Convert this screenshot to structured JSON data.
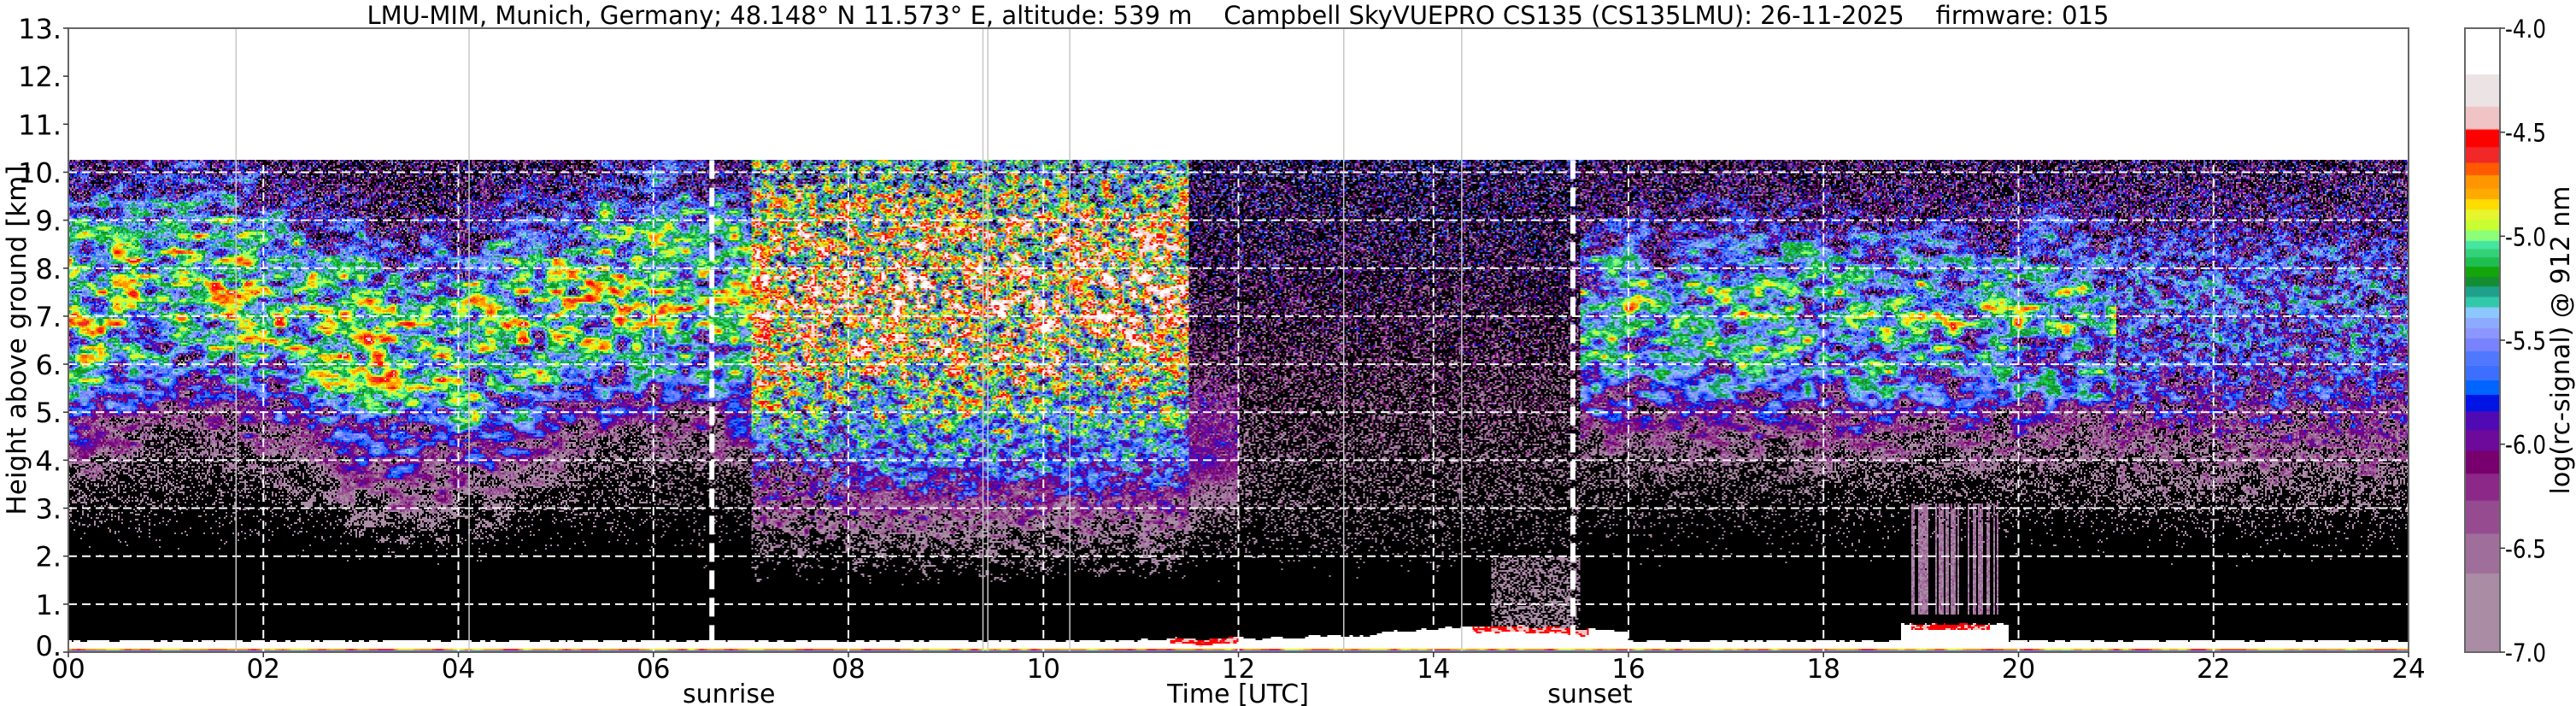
{
  "chart_data": {
    "type": "heatmap",
    "title": "LMU-MIM, Munich, Germany; 48.148° N 11.573° E, altitude: 539 m    Campbell SkyVUEPRO CS135 (CS135LMU): 26-11-2025    firmware: 015",
    "xlabel": "Time [UTC]",
    "ylabel": "Height above ground [km]",
    "xlim": [
      0,
      24
    ],
    "ylim": [
      0,
      13
    ],
    "xticks": [
      0,
      2,
      4,
      6,
      8,
      10,
      12,
      14,
      16,
      18,
      20,
      22,
      24
    ],
    "xtick_labels": [
      "00",
      "02",
      "04",
      "06",
      "08",
      "10",
      "12",
      "14",
      "16",
      "18",
      "20",
      "22",
      "24"
    ],
    "yticks": [
      0,
      1,
      2,
      3,
      4,
      5,
      6,
      7,
      8,
      9,
      10,
      11,
      12,
      13
    ],
    "ytick_labels": [
      "0.",
      "1.",
      "2.",
      "3.",
      "4.",
      "5.",
      "6.",
      "7.",
      "8.",
      "9.",
      "10.",
      "11.",
      "12.",
      "13."
    ],
    "data_top_km": 10.25,
    "grid": true,
    "annotations": [
      {
        "label": "sunrise",
        "time_h": 6.6
      },
      {
        "label": "sunset",
        "time_h": 15.43
      }
    ],
    "data_gap_lines_h": [
      1.72,
      4.11,
      9.38,
      9.43,
      10.27,
      13.08,
      14.29
    ],
    "colorbar": {
      "label": "log(rc-signal) @ 912 nm",
      "range": [
        -7.0,
        -4.0
      ],
      "ticks": [
        -7.0,
        -6.5,
        -6.0,
        -5.5,
        -5.0,
        -4.5,
        -4.0
      ],
      "tick_labels": [
        "-7.0",
        "-6.5",
        "-6.0",
        "-5.5",
        "-5.0",
        "-4.5",
        "-4.0"
      ],
      "under_color": "#000000",
      "no_data_color": "#ffffff",
      "bounds": [
        -7.0,
        -6.62,
        -6.43,
        -6.27,
        -6.14,
        -6.03,
        -5.93,
        -5.84,
        -5.76,
        -5.69,
        -5.62,
        -5.55,
        -5.49,
        -5.44,
        -5.39,
        -5.34,
        -5.29,
        -5.24,
        -5.195,
        -5.145,
        -5.1,
        -5.06,
        -5.02,
        -4.97,
        -4.92,
        -4.87,
        -4.82,
        -4.77,
        -4.705,
        -4.645,
        -4.57,
        -4.485,
        -4.375,
        -4.22,
        -4.0
      ],
      "colors": [
        "#aa8ca5",
        "#a06e9b",
        "#964b91",
        "#8c2887",
        "#78006e",
        "#6e0a9b",
        "#500ab4",
        "#0014e6",
        "#0064ff",
        "#3c6eff",
        "#5078ff",
        "#7882ff",
        "#8c96ff",
        "#8caaff",
        "#8cc8ff",
        "#32c8aa",
        "#1ea08c",
        "#148c32",
        "#14a50a",
        "#1ebe50",
        "#32d278",
        "#46e6a0",
        "#8cff78",
        "#c8ff32",
        "#e6f52d",
        "#ffdc00",
        "#ffaa00",
        "#ff9600",
        "#ff5a00",
        "#f02828",
        "#ff0000",
        "#f0c4c4",
        "#ece4e4",
        "#ffffff"
      ]
    }
  }
}
